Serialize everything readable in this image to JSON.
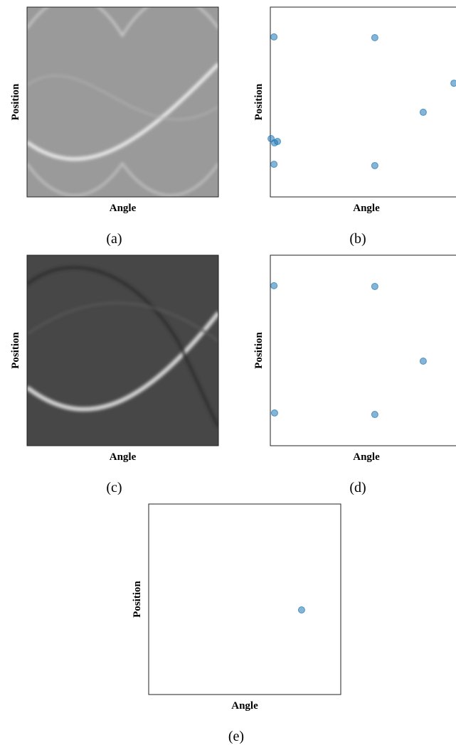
{
  "chart_data": [
    {
      "type": "image",
      "xlabel": "Angle",
      "ylabel": "Position",
      "caption": "(a)",
      "shade": "#9a9a9a"
    },
    {
      "type": "scatter",
      "xlabel": "Angle",
      "ylabel": "Position",
      "caption": "(b)",
      "color": "#1f77b4",
      "xlim": [
        0,
        1
      ],
      "ylim": [
        0,
        1
      ],
      "x": [
        0.019,
        0.544,
        0.956,
        0.796,
        0.004,
        0.022,
        0.037,
        0.019,
        0.544
      ],
      "y": [
        0.843,
        0.839,
        0.599,
        0.446,
        0.307,
        0.285,
        0.292,
        0.172,
        0.165
      ]
    },
    {
      "type": "image",
      "xlabel": "Angle",
      "ylabel": "Position",
      "caption": "(c)",
      "shade": "#474747"
    },
    {
      "type": "scatter",
      "xlabel": "Angle",
      "ylabel": "Position",
      "caption": "(d)",
      "color": "#1f77b4",
      "xlim": [
        0,
        1
      ],
      "ylim": [
        0,
        1
      ],
      "x": [
        0.019,
        0.544,
        0.796,
        0.022,
        0.544
      ],
      "y": [
        0.84,
        0.836,
        0.444,
        0.172,
        0.164
      ]
    },
    {
      "type": "scatter",
      "xlabel": "Angle",
      "ylabel": "Position",
      "caption": "(e)",
      "color": "#1f77b4",
      "xlim": [
        0,
        1
      ],
      "ylim": [
        0,
        1
      ],
      "x": [
        0.796
      ],
      "y": [
        0.444
      ]
    }
  ]
}
